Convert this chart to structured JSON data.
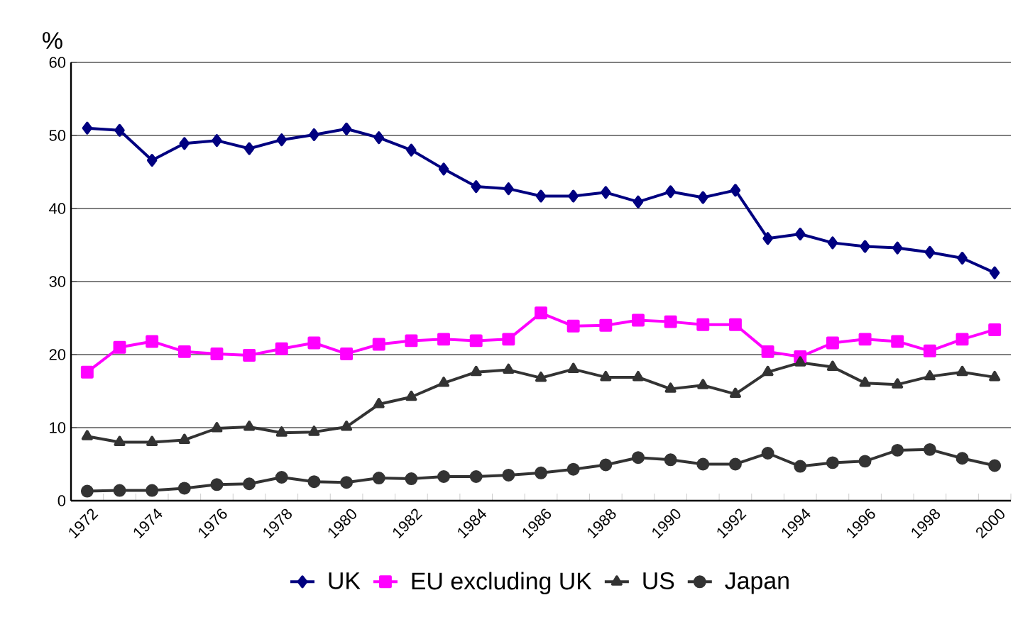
{
  "chart_data": {
    "type": "line",
    "ylabel": "%",
    "categories": [
      "1972",
      null,
      "1974",
      null,
      "1976",
      null,
      "1978",
      null,
      "1980",
      null,
      "1982",
      null,
      "1984",
      null,
      "1986",
      null,
      "1988",
      null,
      "1990",
      null,
      "1992",
      null,
      "1994",
      null,
      "1996",
      null,
      "1998",
      null,
      "2000"
    ],
    "series": [
      {
        "name": "UK",
        "color": "#000080",
        "marker": "diamond",
        "values": [
          51.0,
          50.7,
          46.6,
          48.9,
          49.3,
          48.2,
          49.4,
          50.1,
          50.9,
          49.7,
          48.0,
          45.4,
          43.0,
          42.7,
          41.7,
          41.7,
          42.2,
          40.9,
          42.3,
          41.5,
          42.5,
          35.9,
          36.5,
          35.3,
          34.8,
          34.6,
          34.0,
          33.2,
          31.2
        ]
      },
      {
        "name": "EU excluding UK",
        "color": "#ff00ff",
        "marker": "square",
        "values": [
          17.6,
          21.0,
          21.8,
          20.4,
          20.1,
          19.9,
          20.8,
          21.6,
          20.1,
          21.4,
          21.9,
          22.1,
          21.9,
          22.1,
          25.7,
          23.9,
          24.0,
          24.7,
          24.5,
          24.1,
          24.1,
          20.4,
          19.7,
          21.6,
          22.1,
          21.8,
          20.5,
          22.1,
          23.4
        ]
      },
      {
        "name": "US",
        "color": "#333333",
        "marker": "triangle",
        "values": [
          8.8,
          8.0,
          8.0,
          8.3,
          9.9,
          10.1,
          9.3,
          9.4,
          10.1,
          13.2,
          14.2,
          16.1,
          17.6,
          17.9,
          16.8,
          18.0,
          16.9,
          16.9,
          15.3,
          15.8,
          14.6,
          17.6,
          18.9,
          18.3,
          16.1,
          15.9,
          17.0,
          17.6,
          16.9
        ]
      },
      {
        "name": "Japan",
        "color": "#333333",
        "marker": "circle",
        "values": [
          1.3,
          1.4,
          1.4,
          1.7,
          2.2,
          2.3,
          3.2,
          2.6,
          2.5,
          3.1,
          3.0,
          3.3,
          3.3,
          3.5,
          3.8,
          4.3,
          4.9,
          5.9,
          5.6,
          5.0,
          5.0,
          6.5,
          4.7,
          5.2,
          5.4,
          6.9,
          7.0,
          5.8,
          4.8
        ]
      }
    ],
    "ylim": [
      0,
      60
    ],
    "yticks": [
      0,
      10,
      20,
      30,
      40,
      50,
      60
    ],
    "grid": "y",
    "legend": "bottom",
    "line_style": "solid"
  }
}
